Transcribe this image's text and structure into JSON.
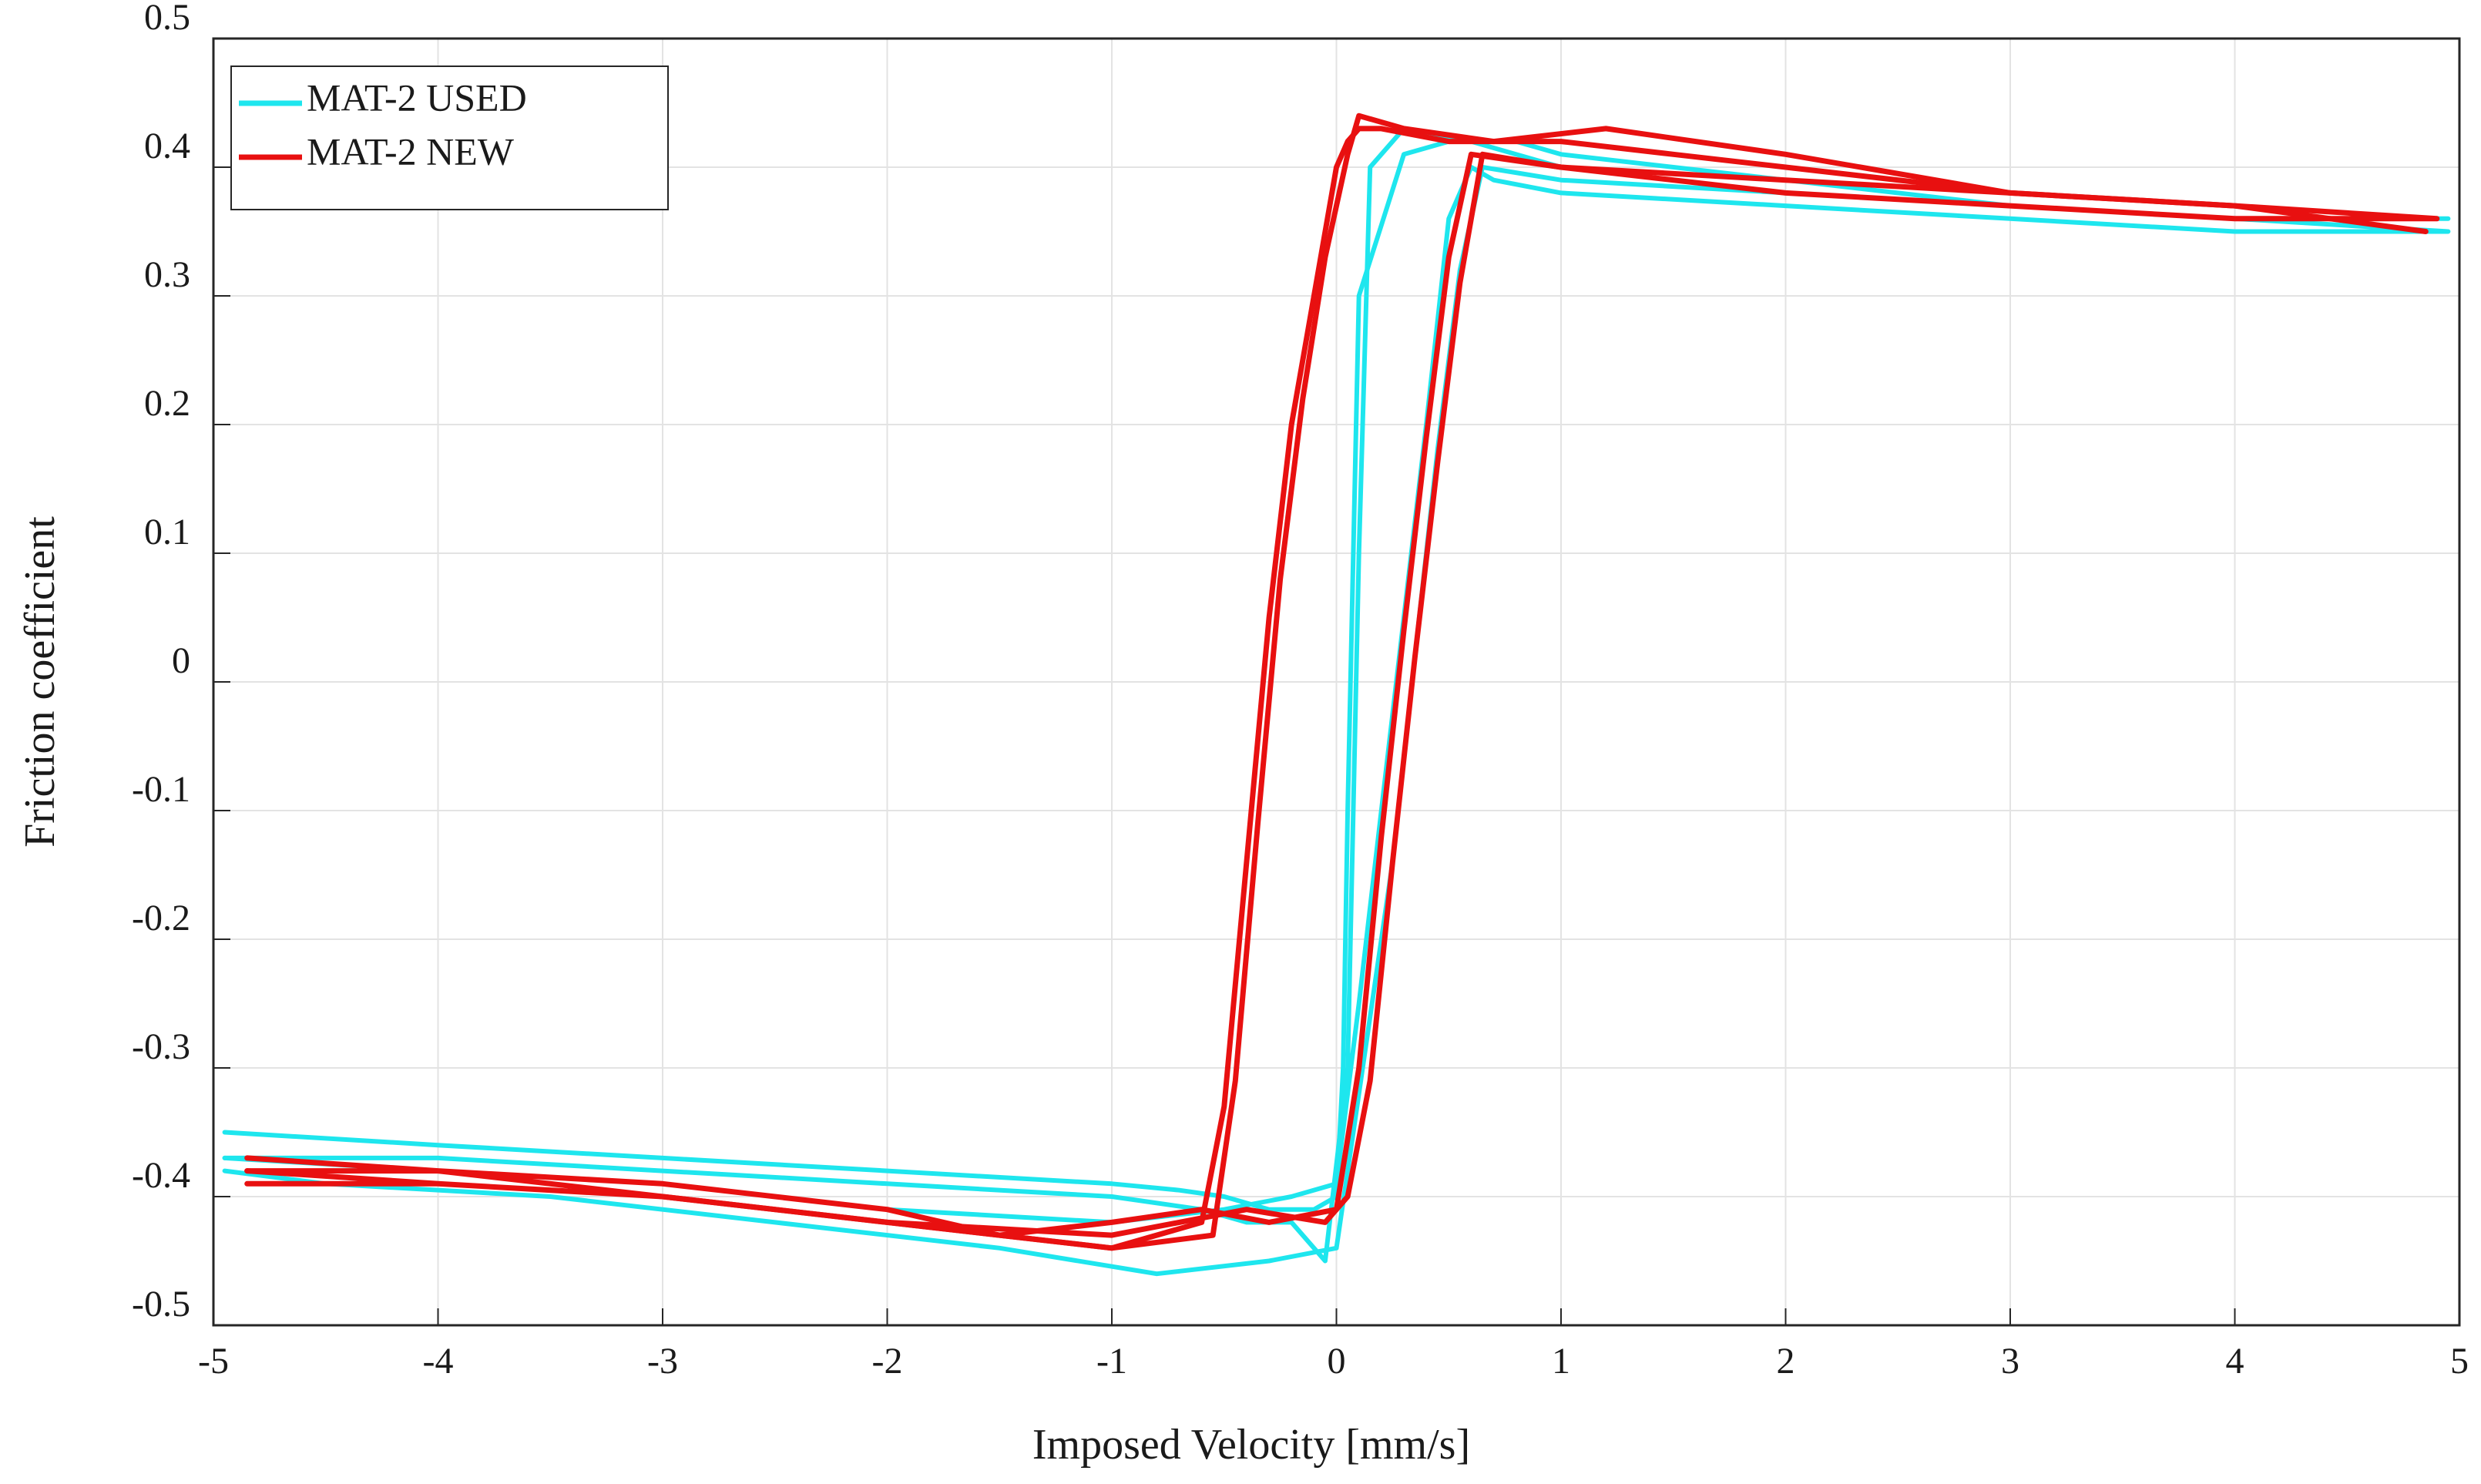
{
  "chart_data": {
    "type": "line",
    "title": "",
    "xlabel": "Imposed Velocity [mm/s]",
    "ylabel": "Friction coefficient",
    "xlim": [
      -5,
      5
    ],
    "ylim": [
      -0.5,
      0.5
    ],
    "xticks": [
      -5,
      -4,
      -3,
      -2,
      -1,
      0,
      1,
      2,
      3,
      4,
      5
    ],
    "yticks": [
      -0.5,
      -0.4,
      -0.3,
      -0.2,
      -0.1,
      0,
      0.1,
      0.2,
      0.3,
      0.4,
      0.5
    ],
    "xtick_labels": [
      "-5",
      "-4",
      "-3",
      "-2",
      "-1",
      "0",
      "1",
      "2",
      "3",
      "4",
      "5"
    ],
    "ytick_labels": [
      "-0.5",
      "-0.4",
      "-0.3",
      "-0.2",
      "-0.1",
      "0",
      "0.1",
      "0.2",
      "0.3",
      "0.4",
      "0.5"
    ],
    "grid": true,
    "legend_position": "top-left",
    "series": [
      {
        "name": "MAT-2 USED",
        "color": "#1ee6ee",
        "cycles": [
          {
            "x": [
              -4.95,
              -4,
              -3,
              -2,
              -1,
              -0.7,
              -0.5,
              -0.3,
              -0.1,
              0,
              0.03,
              0.05,
              0.1,
              0.3,
              0.5,
              0.8,
              1,
              2,
              3,
              4,
              4.95,
              4.85,
              4,
              3,
              2,
              1,
              0.7,
              0.6,
              0.5,
              0.4,
              0.3,
              0.2,
              0.1,
              0,
              -0.2,
              -0.5,
              -1,
              -2,
              -3,
              -4,
              -4.95
            ],
            "y": [
              -0.35,
              -0.36,
              -0.37,
              -0.38,
              -0.39,
              -0.395,
              -0.4,
              -0.41,
              -0.41,
              -0.4,
              -0.3,
              -0.1,
              0.3,
              0.41,
              0.42,
              0.42,
              0.41,
              0.39,
              0.37,
              0.36,
              0.35,
              0.35,
              0.35,
              0.36,
              0.37,
              0.38,
              0.39,
              0.4,
              0.36,
              0.2,
              0.05,
              -0.1,
              -0.25,
              -0.39,
              -0.4,
              -0.41,
              -0.42,
              -0.41,
              -0.39,
              -0.38,
              -0.37
            ]
          },
          {
            "x": [
              -4.95,
              -4,
              -3,
              -2,
              -1,
              -0.6,
              -0.4,
              -0.2,
              -0.05,
              0.05,
              0.1,
              0.15,
              0.3,
              0.6,
              1,
              2,
              3,
              4,
              4.95,
              4,
              3,
              2,
              1,
              0.65,
              0.55,
              0.45,
              0.35,
              0.25,
              0.1,
              0,
              -0.3,
              -0.8,
              -1.5,
              -2.5,
              -3.5,
              -4.5,
              -4.95
            ],
            "y": [
              -0.37,
              -0.37,
              -0.38,
              -0.39,
              -0.4,
              -0.41,
              -0.42,
              -0.42,
              -0.45,
              -0.3,
              0.1,
              0.4,
              0.43,
              0.42,
              0.4,
              0.38,
              0.37,
              0.36,
              0.36,
              0.36,
              0.37,
              0.38,
              0.39,
              0.4,
              0.32,
              0.18,
              0.02,
              -0.14,
              -0.32,
              -0.44,
              -0.45,
              -0.46,
              -0.44,
              -0.42,
              -0.4,
              -0.39,
              -0.38
            ]
          }
        ]
      },
      {
        "name": "MAT-2 NEW",
        "color": "#e81010",
        "cycles": [
          {
            "x": [
              -4.85,
              -4,
              -3,
              -2,
              -1.5,
              -1,
              -0.6,
              -0.5,
              -0.4,
              -0.3,
              -0.2,
              -0.1,
              0,
              0.05,
              0.1,
              0.2,
              0.5,
              1,
              1.5,
              2,
              3,
              4,
              4.9,
              4,
              3,
              2,
              1,
              0.6,
              0.5,
              0.4,
              0.3,
              0.2,
              0.1,
              0,
              -0.3,
              -0.6,
              -1,
              -1.5,
              -2,
              -3,
              -4,
              -4.85
            ],
            "y": [
              -0.37,
              -0.38,
              -0.39,
              -0.41,
              -0.43,
              -0.44,
              -0.42,
              -0.33,
              -0.14,
              0.05,
              0.2,
              0.3,
              0.4,
              0.42,
              0.43,
              0.43,
              0.42,
              0.42,
              0.41,
              0.4,
              0.38,
              0.37,
              0.36,
              0.36,
              0.37,
              0.38,
              0.4,
              0.41,
              0.33,
              0.19,
              0.04,
              -0.12,
              -0.3,
              -0.41,
              -0.42,
              -0.41,
              -0.42,
              -0.43,
              -0.42,
              -0.4,
              -0.38,
              -0.38
            ]
          },
          {
            "x": [
              -4.85,
              -4,
              -3,
              -2,
              -1,
              -0.55,
              -0.45,
              -0.35,
              -0.25,
              -0.15,
              -0.05,
              0.05,
              0.1,
              0.3,
              0.7,
              1.2,
              2,
              3,
              4,
              4.85,
              4,
              3,
              2,
              1,
              0.65,
              0.55,
              0.45,
              0.35,
              0.25,
              0.15,
              0.05,
              -0.05,
              -0.4,
              -1,
              -2,
              -3,
              -4,
              -4.85
            ],
            "y": [
              -0.39,
              -0.39,
              -0.4,
              -0.42,
              -0.44,
              -0.43,
              -0.31,
              -0.11,
              0.08,
              0.22,
              0.33,
              0.41,
              0.44,
              0.43,
              0.42,
              0.43,
              0.41,
              0.38,
              0.37,
              0.35,
              0.37,
              0.38,
              0.39,
              0.4,
              0.41,
              0.31,
              0.17,
              0.02,
              -0.14,
              -0.31,
              -0.4,
              -0.42,
              -0.41,
              -0.43,
              -0.42,
              -0.4,
              -0.39,
              -0.38
            ]
          }
        ]
      }
    ]
  }
}
